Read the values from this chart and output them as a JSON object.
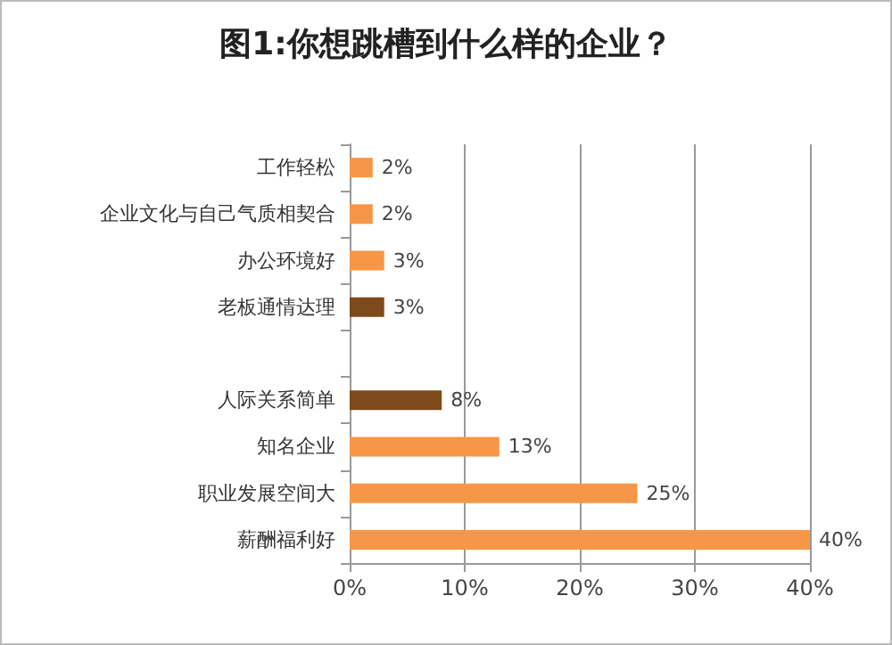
{
  "chart_data": {
    "type": "bar",
    "orientation": "horizontal",
    "title": "图1:你想跳槽到什么样的企业？",
    "categories": [
      "工作轻松",
      "企业文化与自己气质相契合",
      "办公环境好",
      "老板通情达理",
      null,
      "人际关系简单",
      "知名企业",
      "职业发展空间大",
      "薪酬福利好"
    ],
    "values": [
      2,
      2,
      3,
      3,
      null,
      8,
      13,
      25,
      40
    ],
    "colors": [
      "#f79646",
      "#f79646",
      "#f79646",
      "#7f4a1a",
      null,
      "#7f4a1a",
      "#f79646",
      "#f79646",
      "#f79646"
    ],
    "value_labels": [
      "2%",
      "2%",
      "3%",
      "3%",
      null,
      "8%",
      "13%",
      "25%",
      "40%"
    ],
    "xlim": [
      0,
      40
    ],
    "xticks": [
      {
        "value": 0,
        "label": "0%"
      },
      {
        "value": 10,
        "label": "10%"
      },
      {
        "value": 20,
        "label": "20%"
      },
      {
        "value": 30,
        "label": "30%"
      },
      {
        "value": 40,
        "label": "40%"
      }
    ],
    "grid": "x"
  }
}
